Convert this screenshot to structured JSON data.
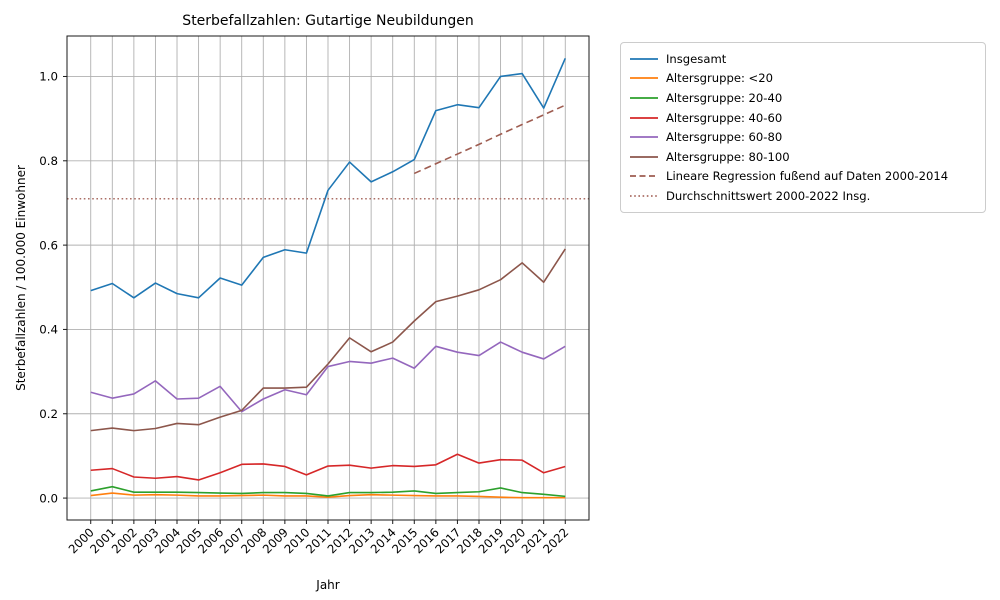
{
  "title": "Sterbefallzahlen: Gutartige Neubildungen",
  "xlabel": "Jahr",
  "ylabel": "Sterbefallzahlen / 100.000 Einwohner",
  "chart_data": {
    "type": "line",
    "x": [
      2000,
      2001,
      2002,
      2003,
      2004,
      2005,
      2006,
      2007,
      2008,
      2009,
      2010,
      2011,
      2012,
      2013,
      2014,
      2015,
      2016,
      2017,
      2018,
      2019,
      2020,
      2021,
      2022
    ],
    "series": [
      {
        "name": "Insgesamt",
        "color": "#1f77b4",
        "style": "solid",
        "values": [
          0.492,
          0.509,
          0.475,
          0.51,
          0.485,
          0.475,
          0.522,
          0.505,
          0.571,
          0.589,
          0.581,
          0.73,
          0.797,
          0.75,
          0.774,
          0.803,
          0.919,
          0.933,
          0.926,
          1.0,
          1.007,
          0.925,
          1.043
        ]
      },
      {
        "name": "Altersgruppe: <20",
        "color": "#ff7f0e",
        "style": "solid",
        "values": [
          0.006,
          0.012,
          0.007,
          0.008,
          0.007,
          0.005,
          0.005,
          0.006,
          0.007,
          0.005,
          0.005,
          0.002,
          0.006,
          0.008,
          0.007,
          0.006,
          0.005,
          0.005,
          0.004,
          0.002,
          0.001,
          0.001,
          0.001
        ]
      },
      {
        "name": "Altersgruppe: 20-40",
        "color": "#2ca02c",
        "style": "solid",
        "values": [
          0.017,
          0.027,
          0.014,
          0.014,
          0.014,
          0.013,
          0.012,
          0.011,
          0.013,
          0.013,
          0.011,
          0.005,
          0.013,
          0.013,
          0.014,
          0.017,
          0.011,
          0.013,
          0.015,
          0.024,
          0.013,
          0.009,
          0.004
        ]
      },
      {
        "name": "Altersgruppe: 40-60",
        "color": "#d62728",
        "style": "solid",
        "values": [
          0.066,
          0.07,
          0.05,
          0.047,
          0.051,
          0.043,
          0.06,
          0.08,
          0.081,
          0.075,
          0.055,
          0.076,
          0.078,
          0.071,
          0.077,
          0.075,
          0.079,
          0.104,
          0.083,
          0.091,
          0.09,
          0.06,
          0.075
        ]
      },
      {
        "name": "Altersgruppe: 60-80",
        "color": "#9467bd",
        "style": "solid",
        "values": [
          0.251,
          0.237,
          0.247,
          0.278,
          0.235,
          0.237,
          0.265,
          0.205,
          0.235,
          0.257,
          0.245,
          0.312,
          0.324,
          0.32,
          0.332,
          0.308,
          0.36,
          0.346,
          0.338,
          0.37,
          0.346,
          0.33,
          0.36
        ]
      },
      {
        "name": "Altersgruppe: 80-100",
        "color": "#8c564b",
        "style": "solid",
        "values": [
          0.16,
          0.166,
          0.16,
          0.165,
          0.177,
          0.174,
          0.192,
          0.208,
          0.261,
          0.261,
          0.263,
          0.318,
          0.38,
          0.347,
          0.37,
          0.42,
          0.466,
          0.479,
          0.494,
          0.518,
          0.558,
          0.512,
          0.591
        ]
      },
      {
        "name": "Lineare Regression fußend auf Daten 2000-2014",
        "color": "#9e5c50",
        "style": "dashed",
        "x": [
          2015,
          2016,
          2017,
          2018,
          2019,
          2020,
          2021,
          2022
        ],
        "values": [
          0.77,
          0.793,
          0.816,
          0.839,
          0.863,
          0.886,
          0.909,
          0.932
        ]
      },
      {
        "name": "Durchschnittswert 2000-2022 Insg.",
        "color": "#ab6f66",
        "style": "dotted",
        "x": [
          1998.9,
          2023.1
        ],
        "values": [
          0.71,
          0.71
        ]
      }
    ],
    "xlim": [
      1998.9,
      2023.1
    ],
    "ylim": [
      -0.052,
      1.096
    ],
    "yticks": [
      0.0,
      0.2,
      0.4,
      0.6,
      0.8,
      1.0
    ],
    "ytick_labels": [
      "0.0",
      "0.2",
      "0.4",
      "0.6",
      "0.8",
      "1.0"
    ],
    "grid": true,
    "legend_position": "upper-right-outside"
  }
}
